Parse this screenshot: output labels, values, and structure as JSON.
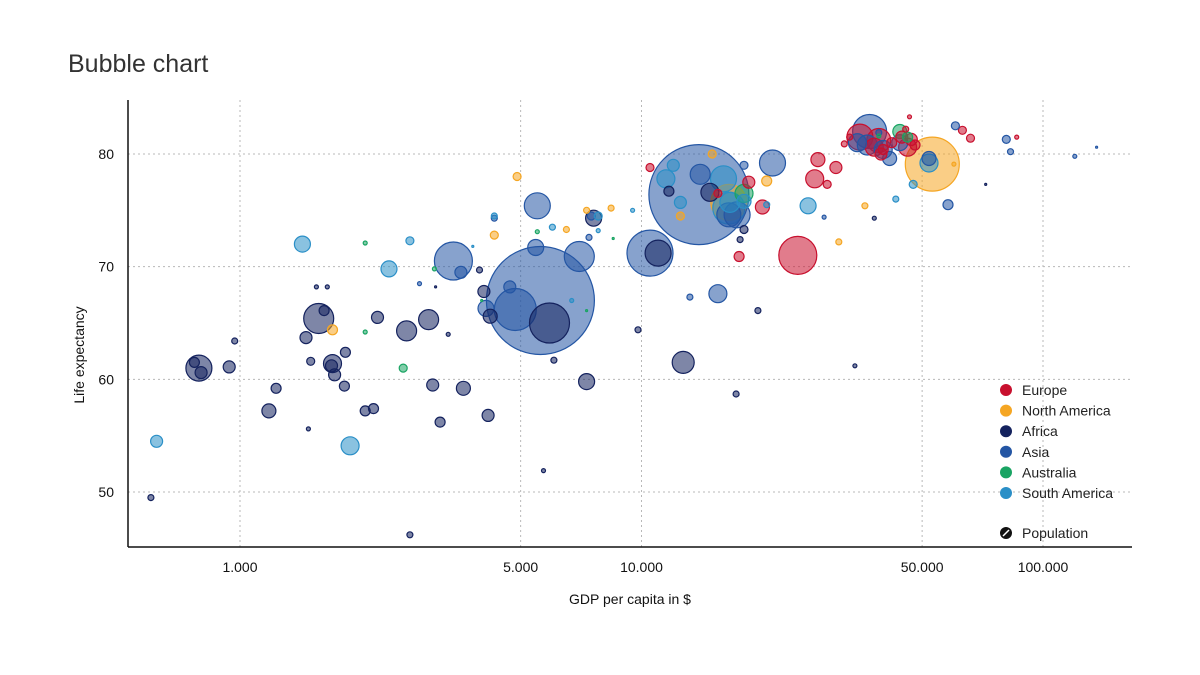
{
  "chart_data": {
    "type": "scatter",
    "title": "Bubble chart",
    "xlabel": "GDP per capita in $",
    "ylabel": "Life expectancy",
    "xscale": "log",
    "xlim": [
      550,
      160000
    ],
    "ylim": [
      46,
      84
    ],
    "grid": true,
    "legend_position": "bottom-right",
    "x_ticks": [
      {
        "value": 1000,
        "label": "1.000"
      },
      {
        "value": 5000,
        "label": "5.000"
      },
      {
        "value": 10000,
        "label": "10.000"
      },
      {
        "value": 50000,
        "label": "50.000"
      },
      {
        "value": 100000,
        "label": "100.000"
      }
    ],
    "y_ticks": [
      {
        "value": 50,
        "label": "50"
      },
      {
        "value": 60,
        "label": "60"
      },
      {
        "value": 70,
        "label": "70"
      },
      {
        "value": 80,
        "label": "80"
      }
    ],
    "size_legend_label": "Population",
    "colors": {
      "Europe": "#c8102e",
      "North America": "#f5a623",
      "Africa": "#14225e",
      "Asia": "#2456a4",
      "Australia": "#19a463",
      "South America": "#2a8fc7"
    },
    "series": [
      {
        "name": "Europe",
        "points": [
          [
            10500,
            78.8,
            4
          ],
          [
            15500,
            76.5,
            4
          ],
          [
            17500,
            70.9,
            5
          ],
          [
            18500,
            77.5,
            6
          ],
          [
            20000,
            75.3,
            7
          ],
          [
            24500,
            71.0,
            19
          ],
          [
            27000,
            77.8,
            9
          ],
          [
            27500,
            79.5,
            7
          ],
          [
            29000,
            77.3,
            4
          ],
          [
            30500,
            78.8,
            6
          ],
          [
            32000,
            80.9,
            3
          ],
          [
            33000,
            81.5,
            3
          ],
          [
            35000,
            81.5,
            13
          ],
          [
            38000,
            80.6,
            9
          ],
          [
            39000,
            81.2,
            12
          ],
          [
            39500,
            80.0,
            6
          ],
          [
            40000,
            80.4,
            5
          ],
          [
            42000,
            81.0,
            5
          ],
          [
            44500,
            81.5,
            6
          ],
          [
            45500,
            82.2,
            3
          ],
          [
            46000,
            80.6,
            9
          ],
          [
            47000,
            81.3,
            6
          ],
          [
            48000,
            80.8,
            5
          ],
          [
            46500,
            83.3,
            2
          ],
          [
            66000,
            81.4,
            4
          ],
          [
            63000,
            82.1,
            4
          ],
          [
            86000,
            81.5,
            2
          ]
        ]
      },
      {
        "name": "North America",
        "points": [
          [
            1700,
            64.4,
            5
          ],
          [
            4300,
            72.8,
            4
          ],
          [
            4900,
            78.0,
            4
          ],
          [
            6500,
            73.3,
            3
          ],
          [
            7300,
            75.0,
            3
          ],
          [
            8400,
            75.2,
            3
          ],
          [
            12500,
            74.5,
            4
          ],
          [
            15000,
            80.0,
            4
          ],
          [
            16500,
            75.7,
            18
          ],
          [
            20500,
            77.6,
            5
          ],
          [
            31000,
            72.2,
            3
          ],
          [
            36000,
            75.4,
            3
          ],
          [
            53000,
            79.1,
            27
          ],
          [
            60000,
            79.1,
            2
          ]
        ]
      },
      {
        "name": "Africa",
        "points": [
          [
            600,
            49.5,
            3
          ],
          [
            770,
            61.5,
            5
          ],
          [
            790,
            61.0,
            13
          ],
          [
            800,
            60.6,
            6
          ],
          [
            940,
            61.1,
            6
          ],
          [
            970,
            63.4,
            3
          ],
          [
            1180,
            57.2,
            7
          ],
          [
            1230,
            59.2,
            5
          ],
          [
            1460,
            63.7,
            6
          ],
          [
            1480,
            55.6,
            2
          ],
          [
            1500,
            61.6,
            4
          ],
          [
            1550,
            68.2,
            2
          ],
          [
            1570,
            65.4,
            15
          ],
          [
            1620,
            66.1,
            5
          ],
          [
            1650,
            68.2,
            2
          ],
          [
            1690,
            61.2,
            6
          ],
          [
            1700,
            61.4,
            9
          ],
          [
            1720,
            60.4,
            6
          ],
          [
            1820,
            59.4,
            5
          ],
          [
            1830,
            62.4,
            5
          ],
          [
            2050,
            57.2,
            5
          ],
          [
            2150,
            57.4,
            5
          ],
          [
            2200,
            65.5,
            6
          ],
          [
            2600,
            64.3,
            10
          ],
          [
            2650,
            46.2,
            3
          ],
          [
            2950,
            65.3,
            10
          ],
          [
            3020,
            59.5,
            6
          ],
          [
            3070,
            68.2,
            1
          ],
          [
            3150,
            56.2,
            5
          ],
          [
            3300,
            64.0,
            2
          ],
          [
            3600,
            59.2,
            7
          ],
          [
            3950,
            69.7,
            3
          ],
          [
            4050,
            67.8,
            6
          ],
          [
            4150,
            56.8,
            6
          ],
          [
            4200,
            65.6,
            7
          ],
          [
            5900,
            65.0,
            20
          ],
          [
            6050,
            61.7,
            3
          ],
          [
            5700,
            51.9,
            2
          ],
          [
            7300,
            59.8,
            8
          ],
          [
            7600,
            74.3,
            8
          ],
          [
            9800,
            64.4,
            3
          ],
          [
            11000,
            71.2,
            13
          ],
          [
            11700,
            76.7,
            5
          ],
          [
            12700,
            61.5,
            11
          ],
          [
            14800,
            76.6,
            9
          ],
          [
            17200,
            58.7,
            3
          ],
          [
            17600,
            72.4,
            3
          ],
          [
            18000,
            73.3,
            4
          ],
          [
            19500,
            66.1,
            3
          ],
          [
            34000,
            61.2,
            2
          ],
          [
            38000,
            74.3,
            2
          ],
          [
            72000,
            77.3,
            1
          ]
        ]
      },
      {
        "name": "Asia",
        "points": [
          [
            2800,
            68.5,
            2
          ],
          [
            3400,
            70.5,
            19
          ],
          [
            3550,
            69.5,
            6
          ],
          [
            4100,
            66.3,
            8
          ],
          [
            4300,
            74.3,
            3
          ],
          [
            4700,
            68.2,
            6
          ],
          [
            4850,
            66.2,
            21
          ],
          [
            5600,
            67.0,
            54
          ],
          [
            5500,
            75.4,
            13
          ],
          [
            5450,
            71.7,
            8
          ],
          [
            7000,
            70.9,
            15
          ],
          [
            7400,
            72.6,
            3
          ],
          [
            7500,
            74.5,
            4
          ],
          [
            10500,
            71.2,
            23
          ],
          [
            13200,
            67.3,
            3
          ],
          [
            13900,
            76.4,
            50
          ],
          [
            14000,
            78.2,
            10
          ],
          [
            15500,
            67.6,
            9
          ],
          [
            16500,
            74.6,
            12
          ],
          [
            17300,
            74.6,
            13
          ],
          [
            18000,
            79.0,
            4
          ],
          [
            21200,
            79.2,
            13
          ],
          [
            28500,
            74.4,
            2
          ],
          [
            34500,
            81.0,
            9
          ],
          [
            36500,
            80.8,
            10
          ],
          [
            37000,
            82.0,
            17
          ],
          [
            39000,
            81.9,
            3
          ],
          [
            40000,
            80.4,
            9
          ],
          [
            41500,
            79.6,
            7
          ],
          [
            44000,
            81.0,
            8
          ],
          [
            52000,
            79.6,
            7
          ],
          [
            58000,
            75.5,
            5
          ],
          [
            60500,
            82.5,
            4
          ],
          [
            81000,
            81.3,
            4
          ],
          [
            83000,
            80.2,
            3
          ],
          [
            120000,
            79.8,
            2
          ],
          [
            136000,
            80.6,
            1
          ]
        ]
      },
      {
        "name": "Australia",
        "points": [
          [
            2050,
            72.1,
            2
          ],
          [
            2050,
            64.2,
            2
          ],
          [
            2550,
            61.0,
            4
          ],
          [
            3050,
            69.8,
            2
          ],
          [
            4000,
            67.0,
            1
          ],
          [
            5500,
            73.1,
            2
          ],
          [
            7300,
            66.1,
            1
          ],
          [
            8500,
            72.5,
            1
          ],
          [
            18000,
            76.5,
            9
          ],
          [
            44000,
            82.0,
            7
          ],
          [
            46000,
            81.5,
            5
          ],
          [
            39000,
            81.6,
            2
          ]
        ]
      },
      {
        "name": "South America",
        "points": [
          [
            620,
            54.5,
            6
          ],
          [
            1430,
            72.0,
            8
          ],
          [
            1880,
            54.1,
            9
          ],
          [
            2350,
            69.8,
            8
          ],
          [
            2650,
            72.3,
            4
          ],
          [
            3800,
            71.8,
            1
          ],
          [
            4300,
            74.5,
            3
          ],
          [
            6000,
            73.5,
            3
          ],
          [
            6700,
            67.0,
            2
          ],
          [
            7800,
            73.2,
            2
          ],
          [
            7800,
            74.5,
            4
          ],
          [
            9500,
            75.0,
            2
          ],
          [
            11500,
            77.8,
            9
          ],
          [
            12000,
            79.0,
            6
          ],
          [
            12500,
            75.7,
            6
          ],
          [
            16000,
            77.8,
            13
          ],
          [
            16500,
            75.2,
            16
          ],
          [
            16600,
            75.7,
            10
          ],
          [
            18000,
            75.8,
            7
          ],
          [
            20500,
            75.5,
            3
          ],
          [
            26000,
            75.4,
            8
          ],
          [
            43000,
            76.0,
            3
          ],
          [
            47500,
            77.3,
            4
          ],
          [
            52000,
            79.2,
            9
          ]
        ]
      }
    ]
  }
}
